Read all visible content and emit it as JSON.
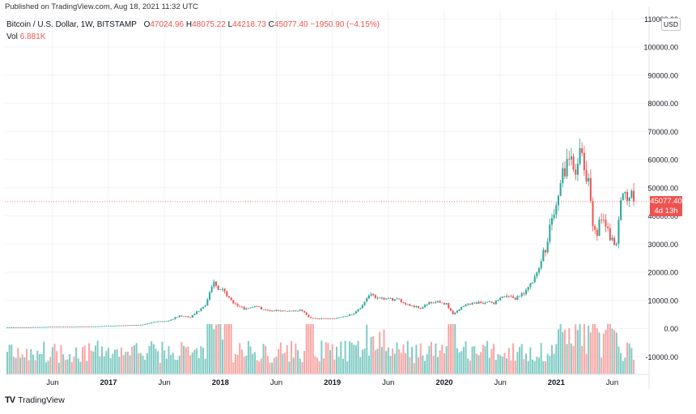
{
  "header": {
    "published": "Published on TradingView.com, Aug 18, 2021 11:32 UTC",
    "symbol": "Bitcoin / U.S. Dollar, 1W, BITSTAMP",
    "open_label": "O",
    "open": "47024.96",
    "high_label": "H",
    "high": "48075.22",
    "low_label": "L",
    "low": "44218.73",
    "close_label": "C",
    "close": "45077.40",
    "change": "−1950.90 (−4.15%)",
    "vol_label": "Vol",
    "vol": "6.881K"
  },
  "footer": {
    "logo": "TV",
    "brand": "TradingView"
  },
  "price_scale": {
    "currency": "USD",
    "last_price": "45077.40",
    "countdown": "4d 13h"
  },
  "colors": {
    "up": "#26a69a",
    "down": "#ef5350",
    "up_vol": "#80cbc4",
    "down_vol": "#f8a5a3",
    "grid": "#f0f3fa"
  },
  "chart_data": {
    "type": "candlestick",
    "title": "Bitcoin / U.S. Dollar, 1W, BITSTAMP",
    "ylim": [
      -15000,
      110000
    ],
    "y_ticks": [
      "110000.00",
      "100000.00",
      "90000.00",
      "80000.00",
      "70000.00",
      "60000.00",
      "50000.00",
      "40000.00",
      "30000.00",
      "20000.00",
      "10000.00",
      "0.00",
      "-10000.00"
    ],
    "y_tick_values": [
      110000,
      100000,
      90000,
      80000,
      70000,
      60000,
      50000,
      40000,
      30000,
      20000,
      10000,
      0,
      -10000
    ],
    "x_ticks": [
      "Jun",
      "2017",
      "Jun",
      "2018",
      "Jun",
      "2019",
      "Jun",
      "2020",
      "Jun",
      "2021",
      "Jun"
    ],
    "x_tick_weeks": [
      21,
      47,
      73,
      99,
      125,
      151,
      177,
      203,
      229,
      255,
      281
    ],
    "bold_x_ticks": [
      "2017",
      "2018",
      "2019",
      "2020",
      "2021"
    ],
    "start_week": "2016 Jan",
    "last_price": 45077.4,
    "price_anchors": [
      [
        0,
        430
      ],
      [
        10,
        450
      ],
      [
        20,
        600
      ],
      [
        30,
        620
      ],
      [
        40,
        700
      ],
      [
        47,
        980
      ],
      [
        55,
        1100
      ],
      [
        62,
        1280
      ],
      [
        67,
        2000
      ],
      [
        70,
        2700
      ],
      [
        72,
        2500
      ],
      [
        75,
        2800
      ],
      [
        80,
        4500
      ],
      [
        85,
        3900
      ],
      [
        88,
        5800
      ],
      [
        92,
        8000
      ],
      [
        96,
        17000
      ],
      [
        98,
        14000
      ],
      [
        100,
        14000
      ],
      [
        103,
        11000
      ],
      [
        106,
        8500
      ],
      [
        110,
        7000
      ],
      [
        115,
        8000
      ],
      [
        120,
        6500
      ],
      [
        128,
        6300
      ],
      [
        137,
        6400
      ],
      [
        140,
        4000
      ],
      [
        145,
        3500
      ],
      [
        152,
        3600
      ],
      [
        160,
        5000
      ],
      [
        165,
        8000
      ],
      [
        169,
        12500
      ],
      [
        172,
        10500
      ],
      [
        177,
        10500
      ],
      [
        182,
        10000
      ],
      [
        187,
        8300
      ],
      [
        192,
        7300
      ],
      [
        196,
        9000
      ],
      [
        200,
        9300
      ],
      [
        204,
        8800
      ],
      [
        207,
        5000
      ],
      [
        210,
        7000
      ],
      [
        214,
        8800
      ],
      [
        220,
        9300
      ],
      [
        226,
        9100
      ],
      [
        230,
        11500
      ],
      [
        236,
        10700
      ],
      [
        240,
        12900
      ],
      [
        243,
        15500
      ],
      [
        246,
        19000
      ],
      [
        248,
        24000
      ],
      [
        250,
        29000
      ],
      [
        252,
        37000
      ],
      [
        254,
        41000
      ],
      [
        256,
        46000
      ],
      [
        258,
        56000
      ],
      [
        260,
        58000
      ],
      [
        263,
        57000
      ],
      [
        266,
        60000
      ],
      [
        268,
        57000
      ],
      [
        270,
        50000
      ],
      [
        272,
        37000
      ],
      [
        274,
        35000
      ],
      [
        276,
        38000
      ],
      [
        278,
        35000
      ],
      [
        280,
        33000
      ],
      [
        283,
        31000
      ],
      [
        284,
        40000
      ],
      [
        285,
        46000
      ],
      [
        287,
        47000
      ]
    ],
    "volume_note": "weekly volume histogram overlaid on price pane"
  }
}
